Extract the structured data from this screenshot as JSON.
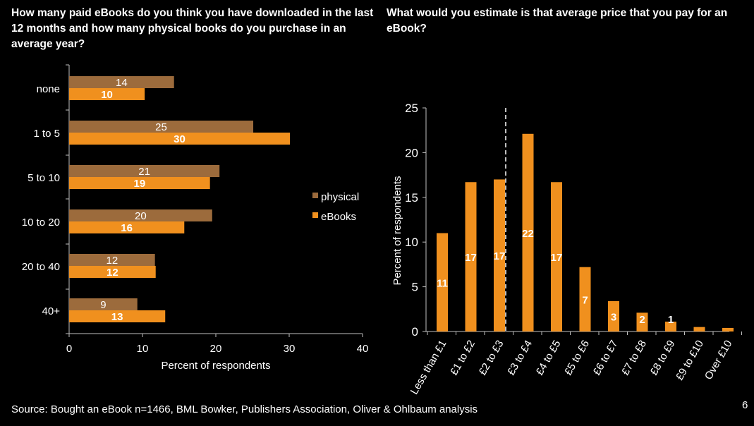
{
  "colors": {
    "physical": "#9c6b3c",
    "ebooks": "#f0901e",
    "background": "#000000",
    "text": "#ffffff"
  },
  "source": "Source: Bought an eBook n=1466, BML Bowker, Publishers Association, Oliver & Ohlbaum analysis",
  "page_number": "6",
  "chart_data": [
    {
      "type": "bar",
      "orientation": "horizontal",
      "title": "How many paid eBooks do you think you have downloaded in the last 12 months and how many physical books do you purchase in an average year?",
      "xlabel": "Percent of respondents",
      "ylabel": "",
      "xlim": [
        0,
        40
      ],
      "xticks": [
        0,
        10,
        20,
        30,
        40
      ],
      "categories": [
        "none",
        "1 to 5",
        "5 to 10",
        "10 to 20",
        "20 to 40",
        "40+"
      ],
      "series": [
        {
          "name": "physical",
          "values": [
            14,
            25,
            21,
            20,
            12,
            9
          ],
          "value_positions": [
            14.3,
            25.1,
            20.5,
            19.5,
            11.7,
            9.3
          ]
        },
        {
          "name": "eBooks",
          "values": [
            10,
            30,
            19,
            16,
            12,
            13
          ],
          "value_positions": [
            10.3,
            30.1,
            19.2,
            15.7,
            11.8,
            13.1
          ]
        }
      ],
      "legend": "right",
      "data_labels": true
    },
    {
      "type": "bar",
      "title": "What would you estimate is that average price that you pay for an eBook?",
      "xlabel": "",
      "ylabel": "Percent of respondents",
      "ylim": [
        0,
        25
      ],
      "yticks": [
        0,
        5,
        10,
        15,
        20,
        25
      ],
      "categories": [
        "Less than £1",
        "£1 to £2",
        "£2 to £3",
        "£3 to £4",
        "£4 to £5",
        "£5 to £6",
        "£6 to £7",
        "£7 to £8",
        "£8 to £9",
        "£9 to £10",
        "Over £10"
      ],
      "values": [
        11,
        16.7,
        17,
        22.1,
        16.7,
        7.2,
        3.4,
        2.1,
        1.1,
        0.5,
        0.4
      ],
      "data_labels": [
        "11",
        "17",
        "17",
        "22",
        "17",
        "7",
        "3",
        "2",
        "1",
        "",
        ""
      ],
      "reference_line": "dashed vertical line between £2 to £3 and £3 to £4",
      "legend": "none"
    }
  ]
}
